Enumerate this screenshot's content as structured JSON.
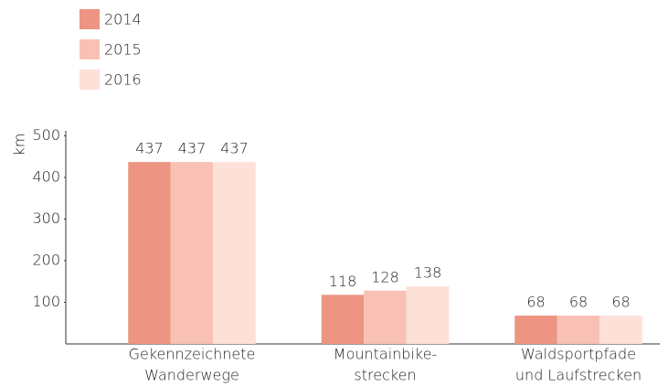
{
  "chart_data": {
    "type": "bar",
    "y_label": "km",
    "categories": [
      [
        "Gekennzeichnete",
        "Wanderwege"
      ],
      [
        "Mountainbike-",
        "strecken"
      ],
      [
        "Waldsportpfade",
        "und Laufstrecken"
      ]
    ],
    "series": [
      {
        "name": "2014",
        "color": "#ed9482",
        "values": [
          437,
          118,
          68
        ]
      },
      {
        "name": "2015",
        "color": "#f8c1b4",
        "values": [
          437,
          128,
          68
        ]
      },
      {
        "name": "2016",
        "color": "#fde0d8",
        "values": [
          437,
          138,
          68
        ]
      }
    ],
    "ylim": [
      0,
      500
    ],
    "yticks": [
      100,
      200,
      300,
      400,
      500
    ],
    "grid": false,
    "legend": "top-left"
  }
}
